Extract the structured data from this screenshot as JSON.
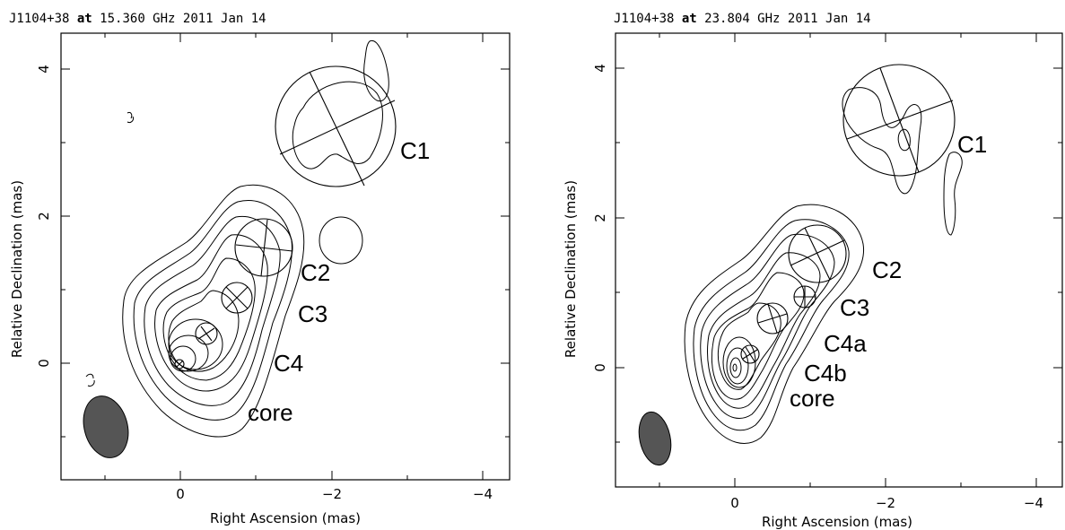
{
  "panels": [
    {
      "title_source": "J1104+38",
      "title_at": "at",
      "title_freq": "15.360 GHz 2011 Jan 14",
      "xlabel": "Right Ascension  (mas)",
      "ylabel": "Relative Declination  (mas)",
      "xticks": [
        "0",
        "−2",
        "−4"
      ],
      "yticks": [
        "0",
        "2",
        "4"
      ],
      "labels": [
        "C1",
        "C2",
        "C3",
        "C4",
        "core"
      ]
    },
    {
      "title_source": "J1104+38",
      "title_at": "at",
      "title_freq": "23.804 GHz 2011 Jan 14",
      "xlabel": "Right Ascension  (mas)",
      "ylabel": "Relative Declination  (mas)",
      "xticks": [
        "0",
        "−2",
        "−4"
      ],
      "yticks": [
        "0",
        "2",
        "4"
      ],
      "labels": [
        "C1",
        "C2",
        "C3",
        "C4a",
        "C4b",
        "core"
      ]
    }
  ]
}
